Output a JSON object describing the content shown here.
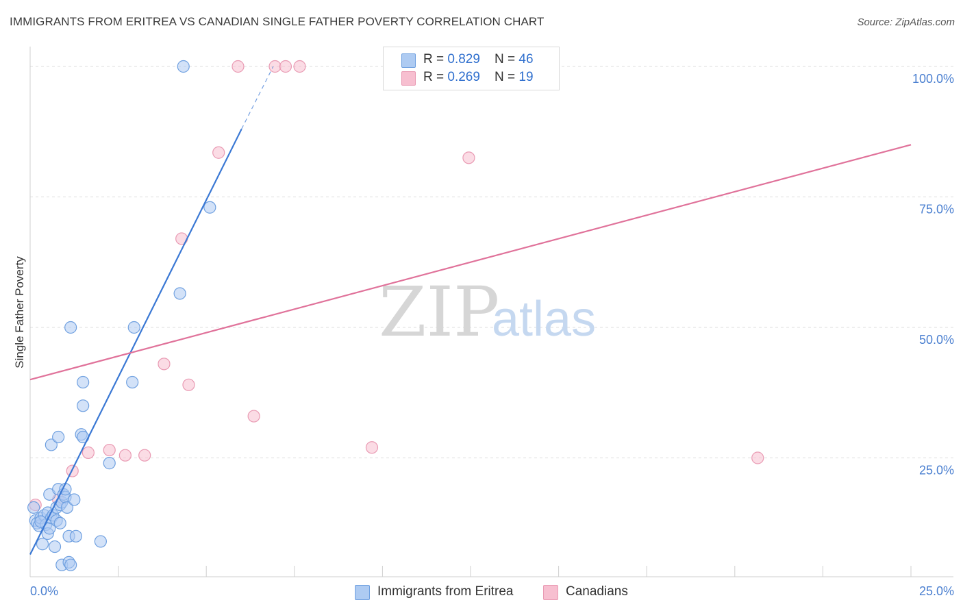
{
  "header": {
    "title": "IMMIGRANTS FROM ERITREA VS CANADIAN SINGLE FATHER POVERTY CORRELATION CHART",
    "source": "Source: ZipAtlas.com"
  },
  "legend": {
    "rows": [
      {
        "r_label": "R = ",
        "r_value": "0.829",
        "n_label": "N = ",
        "n_value": "46"
      },
      {
        "r_label": "R = ",
        "r_value": "0.269",
        "n_label": "N = ",
        "n_value": "19"
      }
    ]
  },
  "watermark": {
    "zip": "ZIP",
    "atlas": "atlas"
  },
  "colors": {
    "blue_fill": "#aecbf2",
    "blue_stroke": "#6fa0e0",
    "blue_line": "#3a78d4",
    "pink_fill": "#f7bfd0",
    "pink_stroke": "#e99ab3",
    "pink_line": "#e0729a"
  },
  "chart_data": {
    "type": "scatter",
    "title": "IMMIGRANTS FROM ERITREA VS CANADIAN SINGLE FATHER POVERTY CORRELATION CHART",
    "xlabel": "",
    "ylabel": "Single Father Poverty",
    "xlim": [
      0,
      25
    ],
    "ylim": [
      0,
      100
    ],
    "x_tick_labels": [
      "0.0%",
      "25.0%"
    ],
    "y_ticks": [
      25,
      50,
      75,
      100
    ],
    "y_tick_labels": [
      "25.0%",
      "50.0%",
      "75.0%",
      "100.0%"
    ],
    "grid": true,
    "legend_position": "top-center",
    "series": [
      {
        "name": "Immigrants from Eritrea",
        "color": "#aecbf2",
        "trend": {
          "x": [
            0.0,
            6.0
          ],
          "y": [
            6.5,
            88.0
          ],
          "dashed_extension": {
            "x": [
              6.0,
              6.9
            ],
            "y": [
              88.0,
              100.0
            ]
          }
        },
        "points": [
          [
            0.1,
            15.5
          ],
          [
            0.15,
            13.0
          ],
          [
            0.2,
            12.5
          ],
          [
            0.25,
            12.0
          ],
          [
            0.3,
            13.5
          ],
          [
            0.35,
            8.5
          ],
          [
            0.4,
            14.0
          ],
          [
            0.45,
            12.2
          ],
          [
            0.5,
            10.5
          ],
          [
            0.5,
            14.5
          ],
          [
            0.55,
            18.0
          ],
          [
            0.55,
            11.5
          ],
          [
            0.6,
            27.5
          ],
          [
            0.6,
            13.5
          ],
          [
            0.65,
            14.0
          ],
          [
            0.7,
            8.0
          ],
          [
            0.75,
            13.0
          ],
          [
            0.75,
            15.5
          ],
          [
            0.8,
            29.0
          ],
          [
            0.8,
            19.0
          ],
          [
            0.85,
            12.5
          ],
          [
            0.85,
            16.0
          ],
          [
            0.9,
            4.5
          ],
          [
            0.9,
            16.5
          ],
          [
            0.95,
            18.0
          ],
          [
            1.0,
            17.5
          ],
          [
            1.0,
            19.0
          ],
          [
            1.05,
            15.5
          ],
          [
            1.1,
            10.0
          ],
          [
            1.1,
            5.0
          ],
          [
            1.15,
            4.5
          ],
          [
            1.15,
            50.0
          ],
          [
            1.25,
            17.0
          ],
          [
            1.3,
            10.0
          ],
          [
            1.45,
            29.5
          ],
          [
            1.5,
            29.0
          ],
          [
            1.5,
            39.5
          ],
          [
            1.5,
            35.0
          ],
          [
            2.0,
            9.0
          ],
          [
            2.25,
            24.0
          ],
          [
            2.9,
            39.5
          ],
          [
            2.95,
            50.0
          ],
          [
            4.25,
            56.5
          ],
          [
            4.35,
            100.0
          ],
          [
            5.1,
            73.0
          ],
          [
            0.3,
            12.8
          ]
        ]
      },
      {
        "name": "Canadians",
        "color": "#f7bfd0",
        "trend": {
          "x": [
            0.0,
            25.0
          ],
          "y": [
            40.0,
            85.0
          ]
        },
        "points": [
          [
            0.15,
            16.0
          ],
          [
            0.8,
            17.0
          ],
          [
            1.2,
            22.5
          ],
          [
            1.65,
            26.0
          ],
          [
            2.25,
            26.5
          ],
          [
            2.7,
            25.5
          ],
          [
            3.25,
            25.5
          ],
          [
            3.8,
            43.0
          ],
          [
            4.3,
            67.0
          ],
          [
            4.5,
            39.0
          ],
          [
            5.35,
            83.5
          ],
          [
            5.9,
            100.0
          ],
          [
            6.35,
            33.0
          ],
          [
            6.95,
            100.0
          ],
          [
            7.25,
            100.0
          ],
          [
            7.65,
            100.0
          ],
          [
            9.7,
            27.0
          ],
          [
            12.45,
            82.5
          ],
          [
            20.65,
            25.0
          ]
        ]
      }
    ]
  }
}
